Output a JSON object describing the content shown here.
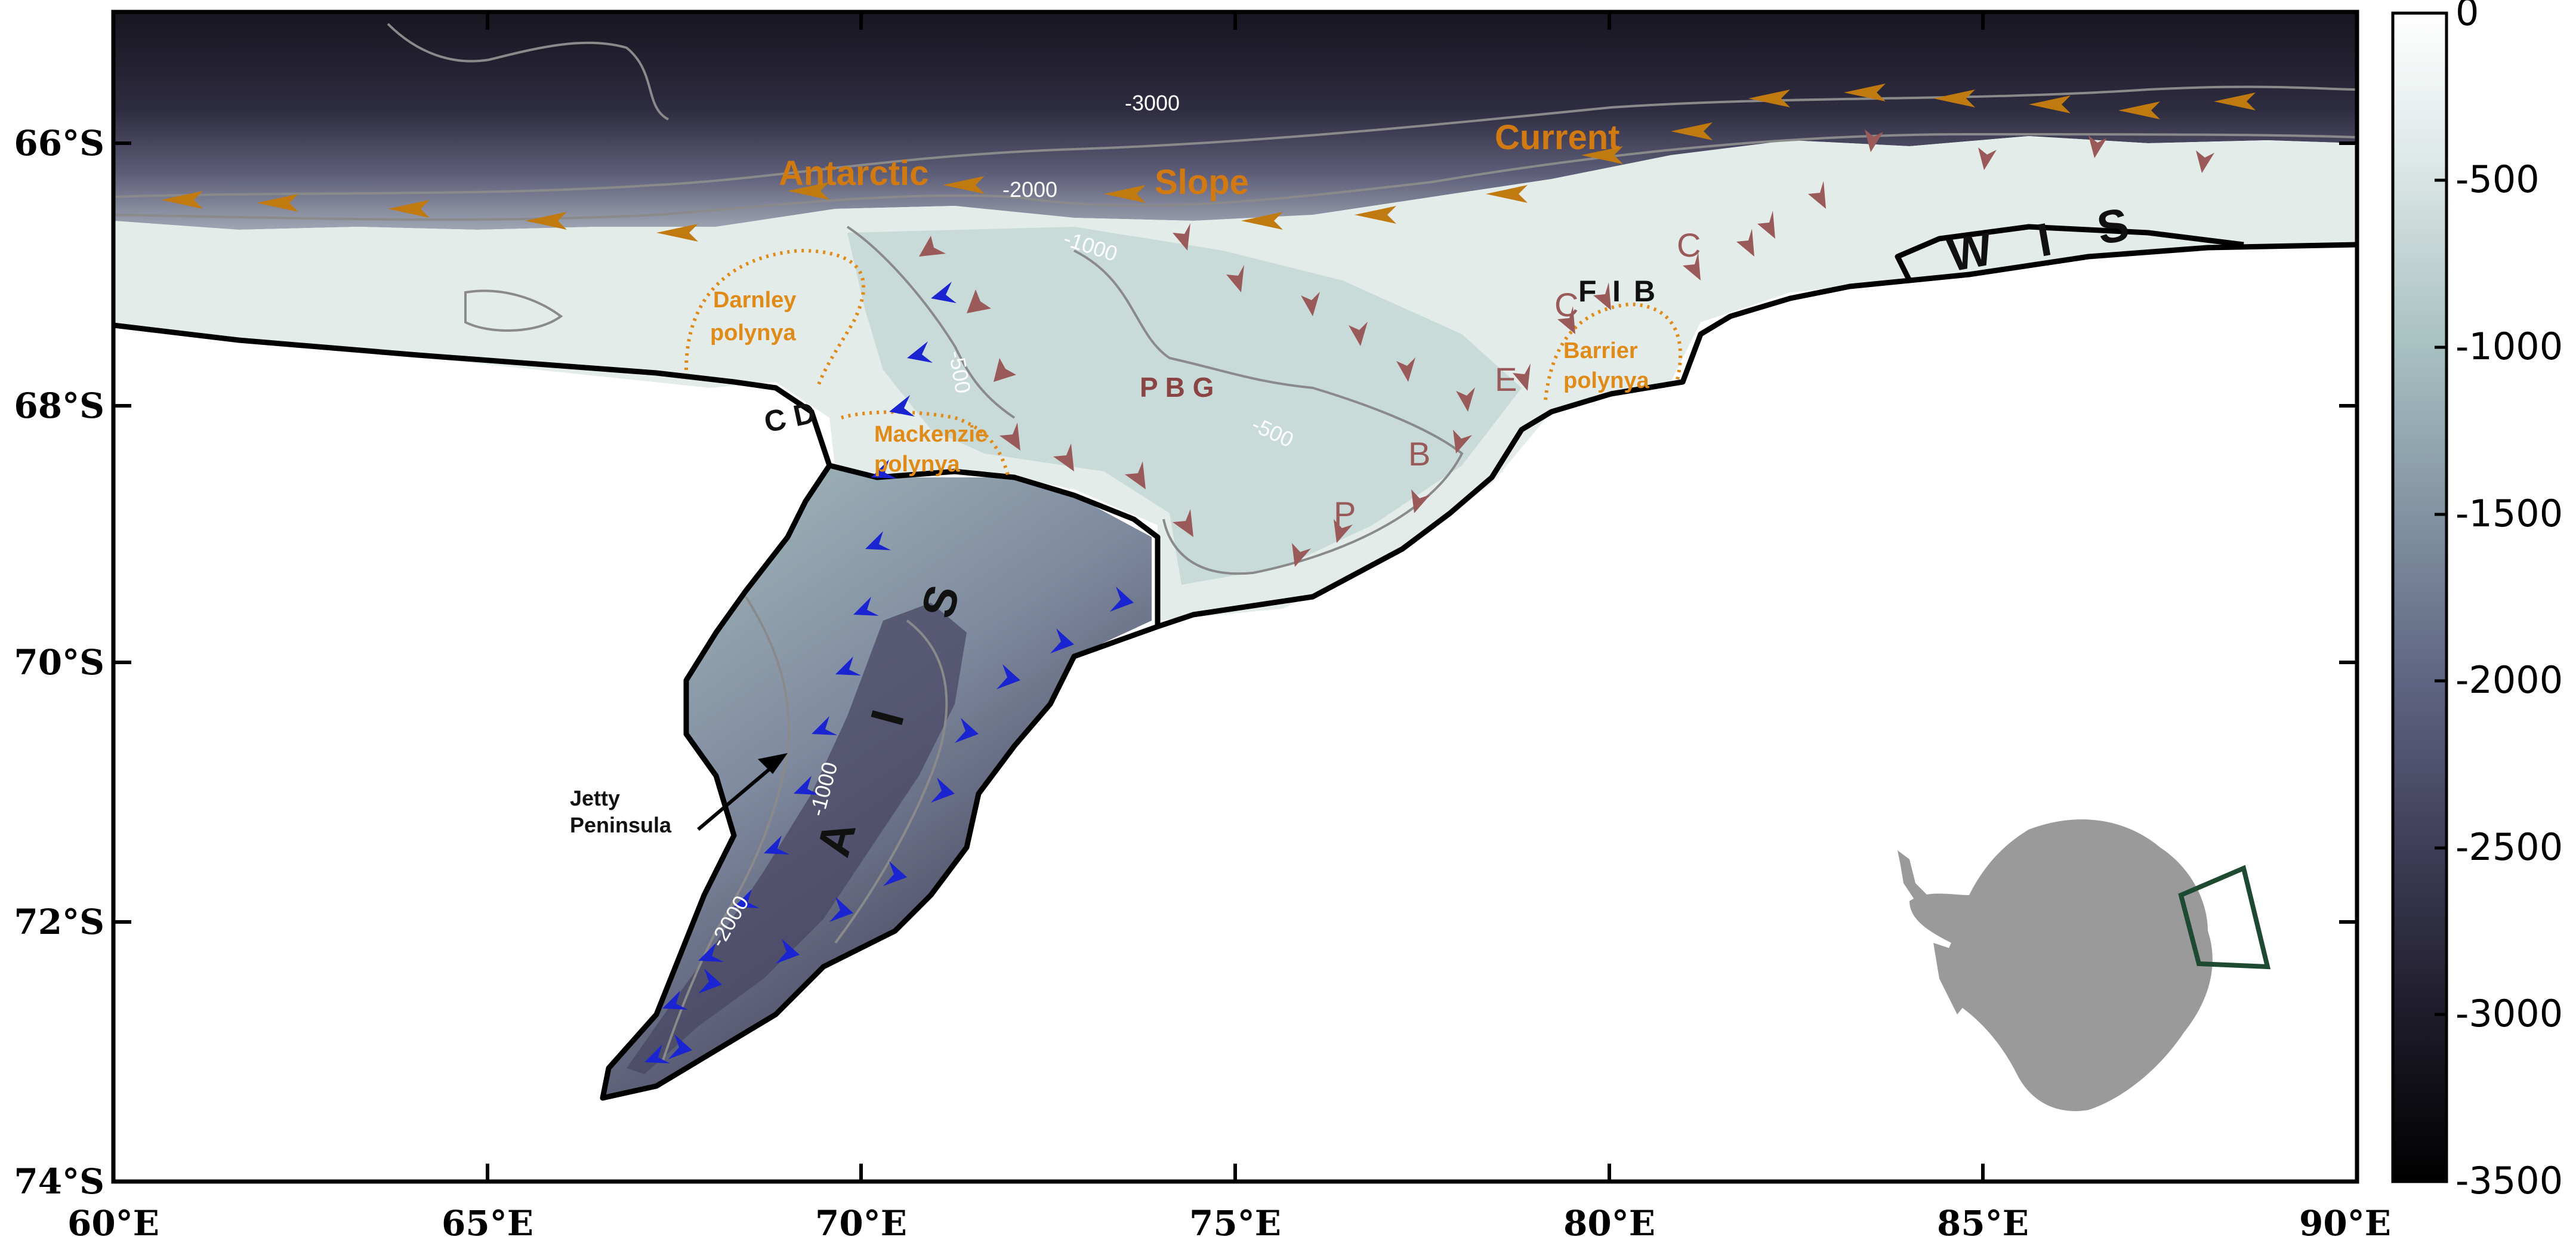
{
  "axes": {
    "x_ticks": [
      "60°E",
      "65°E",
      "70°E",
      "75°E",
      "80°E",
      "85°E",
      "90°E"
    ],
    "y_ticks": [
      "66°S",
      "68°S",
      "70°S",
      "72°S",
      "74°S"
    ]
  },
  "colorbar": {
    "labels": [
      "0",
      "-500",
      "-1000",
      "-1500",
      "-2000",
      "-2500",
      "-3000",
      "-3500"
    ],
    "range": [
      -3500,
      0
    ],
    "colors": {
      "top": "#ffffff",
      "mid": "#a9c2c2",
      "low": "#4a4764",
      "bottom": "#000000"
    }
  },
  "labels": {
    "current_word1": "Antarctic",
    "current_word2": "Slope",
    "current_word3": "Current",
    "darnley_line1": "Darnley",
    "darnley_line2": "polynya",
    "mackenzie_line1": "Mackenzie",
    "mackenzie_line2": "polynya",
    "barrier_line1": "Barrier",
    "barrier_line2": "polynya",
    "contour_3000": "-3000",
    "contour_2000_top": "-2000",
    "contour_1000_top": "-1000",
    "contour_500_a": "-500",
    "contour_500_b": "-500",
    "contour_1000_shelf": "-1000",
    "contour_2000_shelf": "-2000",
    "cd": "C D",
    "pbg": "P B G",
    "fib_f": "F",
    "fib_i": "I",
    "fib_b": "B",
    "wis_w": "W",
    "wis_i": "I",
    "wis_s": "S",
    "ais_a": "A",
    "ais_i": "I",
    "ais_s": "S",
    "letter_c1": "C",
    "letter_c2": "C",
    "letter_e": "E",
    "letter_b": "B",
    "letter_p": "P",
    "jetty_line1": "Jetty",
    "jetty_line2": "Peninsula"
  },
  "legend_colors": {
    "current_arrow": "#c07a10",
    "shelf_arrow_blue": "#1a24d0",
    "coastal_arrow_red": "#9a5a5a",
    "polynya_outline": "#e08a18",
    "inset_box": "#1f4a32",
    "inset_land": "#9a9a9a"
  }
}
